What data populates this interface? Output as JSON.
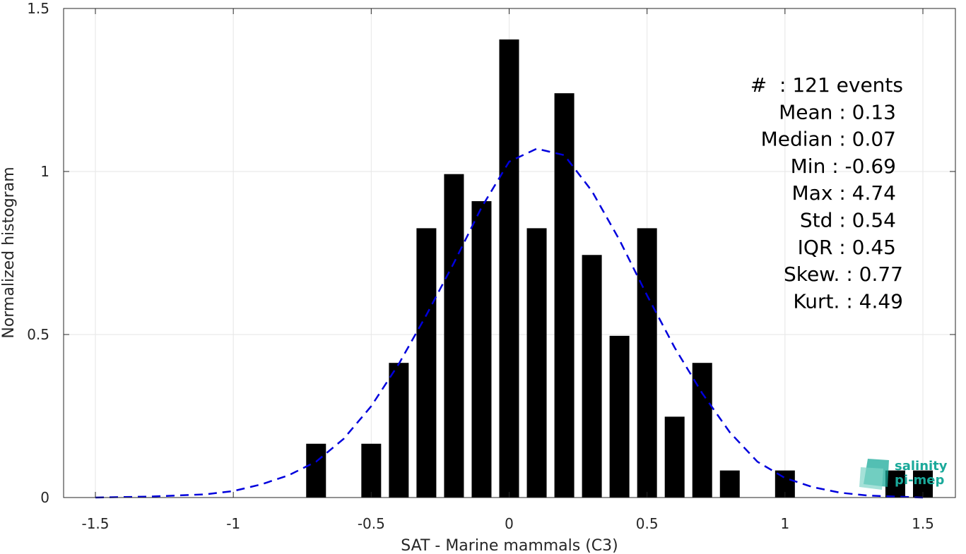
{
  "chart_data": {
    "type": "bar",
    "xlabel": "SAT - Marine mammals (C3)",
    "ylabel": "Normalized histogram",
    "xlim": [
      -1.5,
      1.5
    ],
    "ylim": [
      0,
      1.5
    ],
    "xticks": [
      -1.5,
      -1,
      -0.5,
      0,
      0.5,
      1,
      1.5
    ],
    "xtick_labels": [
      "-1.5",
      "-1",
      "-0.5",
      "0",
      "0.5",
      "1",
      "1.5"
    ],
    "yticks": [
      0,
      0.5,
      1,
      1.5
    ],
    "ytick_labels": [
      "0",
      "0.5",
      "1",
      "1.5"
    ],
    "grid": true,
    "bar_color": "#000000",
    "bins": {
      "x": [
        -0.7,
        -0.5,
        -0.4,
        -0.3,
        -0.2,
        -0.1,
        0.0,
        0.1,
        0.2,
        0.3,
        0.4,
        0.5,
        0.6,
        0.7,
        0.8,
        1.0,
        1.4,
        1.5
      ],
      "values": [
        0.165,
        0.165,
        0.413,
        0.826,
        0.992,
        0.909,
        1.405,
        0.826,
        1.24,
        0.744,
        0.496,
        0.826,
        0.248,
        0.413,
        0.083,
        0.083,
        0.083,
        0.083
      ]
    },
    "fit_curve": {
      "style": "dashed",
      "color": "#0000dd",
      "x": [
        -1.5,
        -1.3,
        -1.1,
        -1.0,
        -0.9,
        -0.8,
        -0.7,
        -0.6,
        -0.5,
        -0.4,
        -0.3,
        -0.2,
        -0.1,
        0.0,
        0.1,
        0.2,
        0.3,
        0.4,
        0.5,
        0.6,
        0.7,
        0.8,
        0.9,
        1.0,
        1.1,
        1.2,
        1.3,
        1.5
      ],
      "y": [
        0.0,
        0.003,
        0.01,
        0.02,
        0.04,
        0.068,
        0.11,
        0.18,
        0.28,
        0.41,
        0.56,
        0.72,
        0.89,
        1.03,
        1.07,
        1.05,
        0.94,
        0.79,
        0.62,
        0.46,
        0.32,
        0.2,
        0.11,
        0.06,
        0.032,
        0.015,
        0.006,
        0.0
      ]
    },
    "stats": [
      "#  : 121 events",
      "Mean : 0.13",
      "Median : 0.07",
      "Min : -0.69",
      "Max : 4.74",
      "Std : 0.54",
      "IQR : 0.45",
      "Skew. : 0.77",
      "Kurt. : 4.49"
    ]
  },
  "logo": {
    "line1": "salinity",
    "line2": "pi-mep",
    "color": "#1aa99a"
  }
}
